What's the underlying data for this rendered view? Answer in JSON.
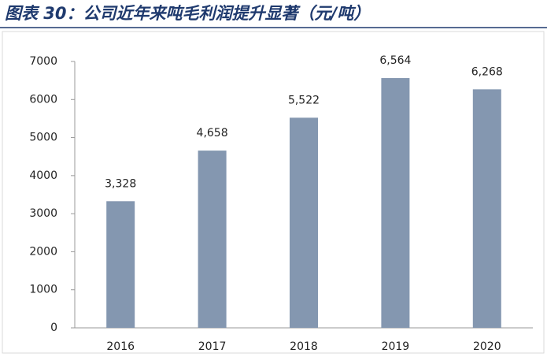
{
  "chart_data": {
    "type": "bar",
    "title": "图表 30：公司近年来吨毛利润提升显著（元/吨）",
    "categories": [
      "2016",
      "2017",
      "2018",
      "2019",
      "2020"
    ],
    "values": [
      3328,
      4658,
      5522,
      6564,
      6268
    ],
    "value_labels": [
      "3,328",
      "4,658",
      "5,522",
      "6,564",
      "6,268"
    ],
    "color": "#8497b0",
    "ylim": [
      0,
      7000
    ],
    "yticks": [
      0,
      1000,
      2000,
      3000,
      4000,
      5000,
      6000,
      7000
    ],
    "grid": false
  }
}
